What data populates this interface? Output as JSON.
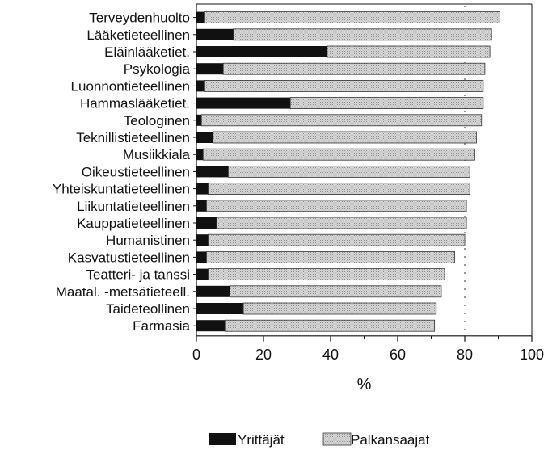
{
  "chart_data": {
    "type": "bar",
    "orientation": "horizontal",
    "stacked": true,
    "categories": [
      "Terveydenhuolto",
      "Lääketieteellinen",
      "Eläinlääketiet.",
      "Psykologia",
      "Luonnontieteellinen",
      "Hammaslääketiet.",
      "Teologinen",
      "Teknillistieteellinen",
      "Musiikkiala",
      "Oikeustieteellinen",
      "Yhteiskuntatieteellinen",
      "Liikuntatieteellinen",
      "Kauppatieteellinen",
      "Humanistinen",
      "Kasvatustieteellinen",
      "Teatteri- ja tanssi",
      "Maatal. -metsätieteell.",
      "Taideteollinen",
      "Farmasia"
    ],
    "series": [
      {
        "name": "Yrittäjät",
        "color": "#111111",
        "values": [
          2.5,
          11,
          39,
          8,
          2.5,
          28,
          1.5,
          5,
          2,
          9.5,
          3.5,
          3,
          6,
          3.5,
          3,
          3.5,
          10,
          14,
          8.5
        ]
      },
      {
        "name": "Palkansaajat",
        "color": "#cfcfcf",
        "values": [
          88,
          77,
          48.5,
          78,
          83,
          57.5,
          83.5,
          78.5,
          81,
          72,
          78,
          77.5,
          74.5,
          76.5,
          74,
          70.5,
          63,
          57.5,
          62.5
        ]
      }
    ],
    "xlabel": "%",
    "xlim": [
      0,
      100
    ],
    "xticks": [
      0,
      20,
      40,
      60,
      80,
      100
    ],
    "reference_line": 80,
    "grid": false,
    "legend_position": "bottom"
  }
}
